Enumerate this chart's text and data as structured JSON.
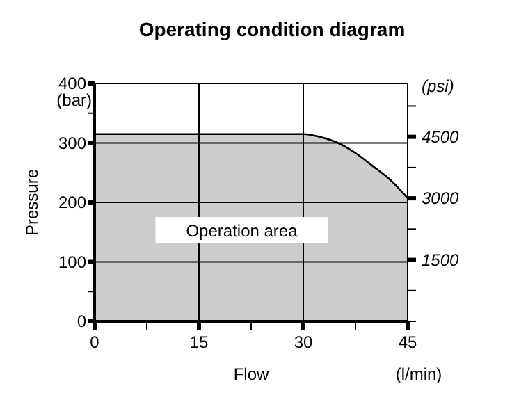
{
  "chart_data": {
    "type": "area",
    "title": "Operating condition diagram",
    "xlabel": "Flow",
    "ylabel": "Pressure",
    "y2label": "(psi)",
    "annotations": [
      "Operation area",
      "(bar)",
      "(l/min)"
    ],
    "x": [
      0,
      30,
      32.5,
      35,
      37.5,
      40,
      42.5,
      45
    ],
    "series": [
      {
        "color": "#cccccc",
        "values": [
          315,
          315,
          310,
          300,
          283,
          261,
          238,
          207
        ]
      }
    ],
    "xlim": [
      0,
      45
    ],
    "xticks": [
      0,
      {
        "value": 7.5,
        "label": null
      },
      15,
      {
        "value": 22.5,
        "label": null
      },
      30,
      {
        "value": 37.5,
        "label": null
      },
      45
    ],
    "ylim": [
      0,
      400
    ],
    "yticks": [
      0,
      {
        "value": 50,
        "label": null
      },
      100,
      200,
      300,
      {
        "value": 350,
        "label": null
      },
      400
    ],
    "y2lim": [
      0,
      5800
    ],
    "y2ticks": [
      {
        "value": 0,
        "label": null
      },
      {
        "value": 750,
        "label": null
      },
      1500,
      {
        "value": 2250,
        "label": null
      },
      3000,
      {
        "value": 3750,
        "label": null
      },
      4500,
      {
        "value": 5250,
        "label": null
      }
    ],
    "grid": true
  }
}
